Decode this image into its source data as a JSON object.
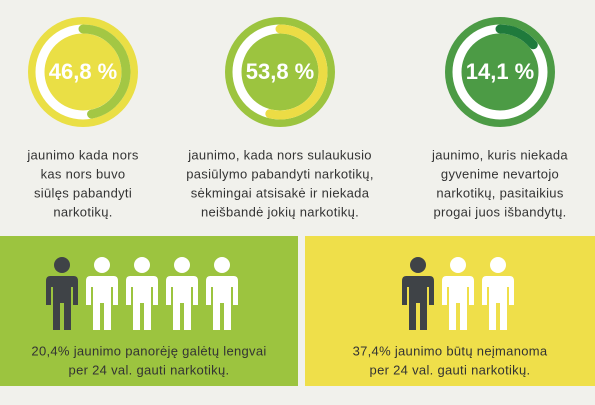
{
  "gauges": [
    {
      "value": 46.8,
      "label": "46,8 %",
      "text": [
        "jaunimo kada nors",
        "kas nors buvo",
        "siūlęs pabandyti",
        "narkotikų."
      ]
    },
    {
      "value": 53.8,
      "label": "53,8 %",
      "text": [
        "jaunimo, kada nors sulaukusio",
        "pasiūlymo pabandyti narkotikų,",
        "sėkmingai atsisakė ir niekada",
        "neišbandė jokių narkotikų."
      ]
    },
    {
      "value": 14.1,
      "label": "14,1 %",
      "text": [
        "jaunimo, kuris niekada",
        "gyvenime nevartojo",
        "narkotikų, pasitaikius",
        "progai juos išbandytų."
      ]
    }
  ],
  "panels": [
    {
      "text": [
        "20,4% jaunimo panorėję galėtų lengvai",
        "per 24 val. gauti narkotikų."
      ]
    },
    {
      "text": [
        "37,4% jaunimo būtų neįmanoma",
        "per 24 val. gauti narkotikų."
      ]
    }
  ]
}
